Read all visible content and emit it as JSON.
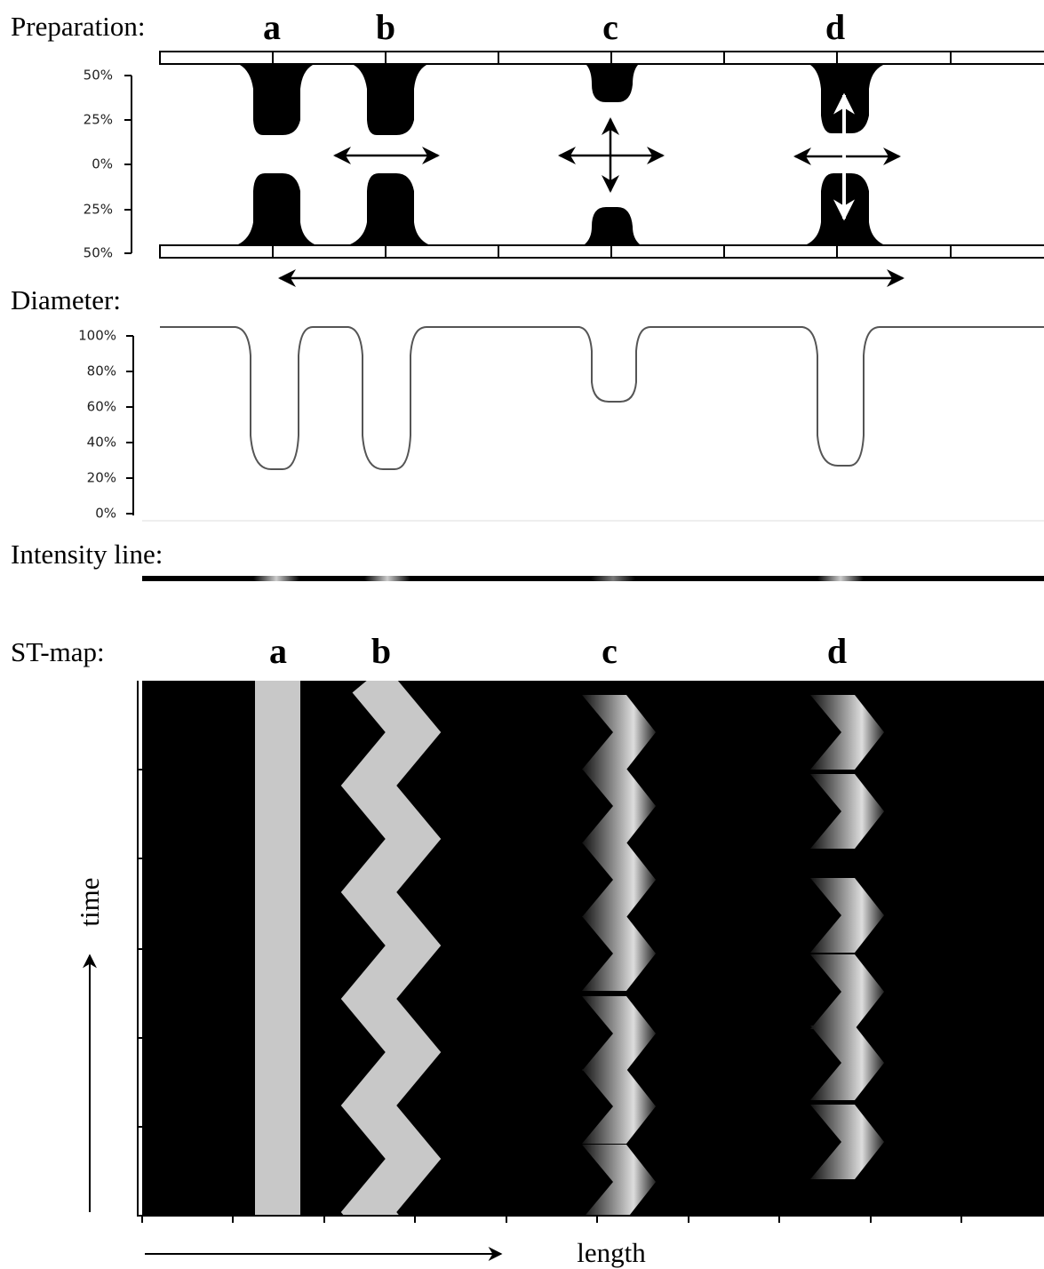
{
  "panels": {
    "preparation": "Preparation:",
    "diameter": "Diameter:",
    "intensity": "Intensity line:",
    "stmap": "ST-map:"
  },
  "letters_top": [
    "a",
    "b",
    "c",
    "d"
  ],
  "letters_map": [
    "a",
    "b",
    "c",
    "d"
  ],
  "preparation_ticks": [
    "50%",
    "25%",
    "0%",
    "25%",
    "50%"
  ],
  "diameter_ticks": [
    "100%",
    "80%",
    "60%",
    "40%",
    "20%",
    "0%"
  ],
  "axes": {
    "time": "time",
    "length": "length"
  }
}
